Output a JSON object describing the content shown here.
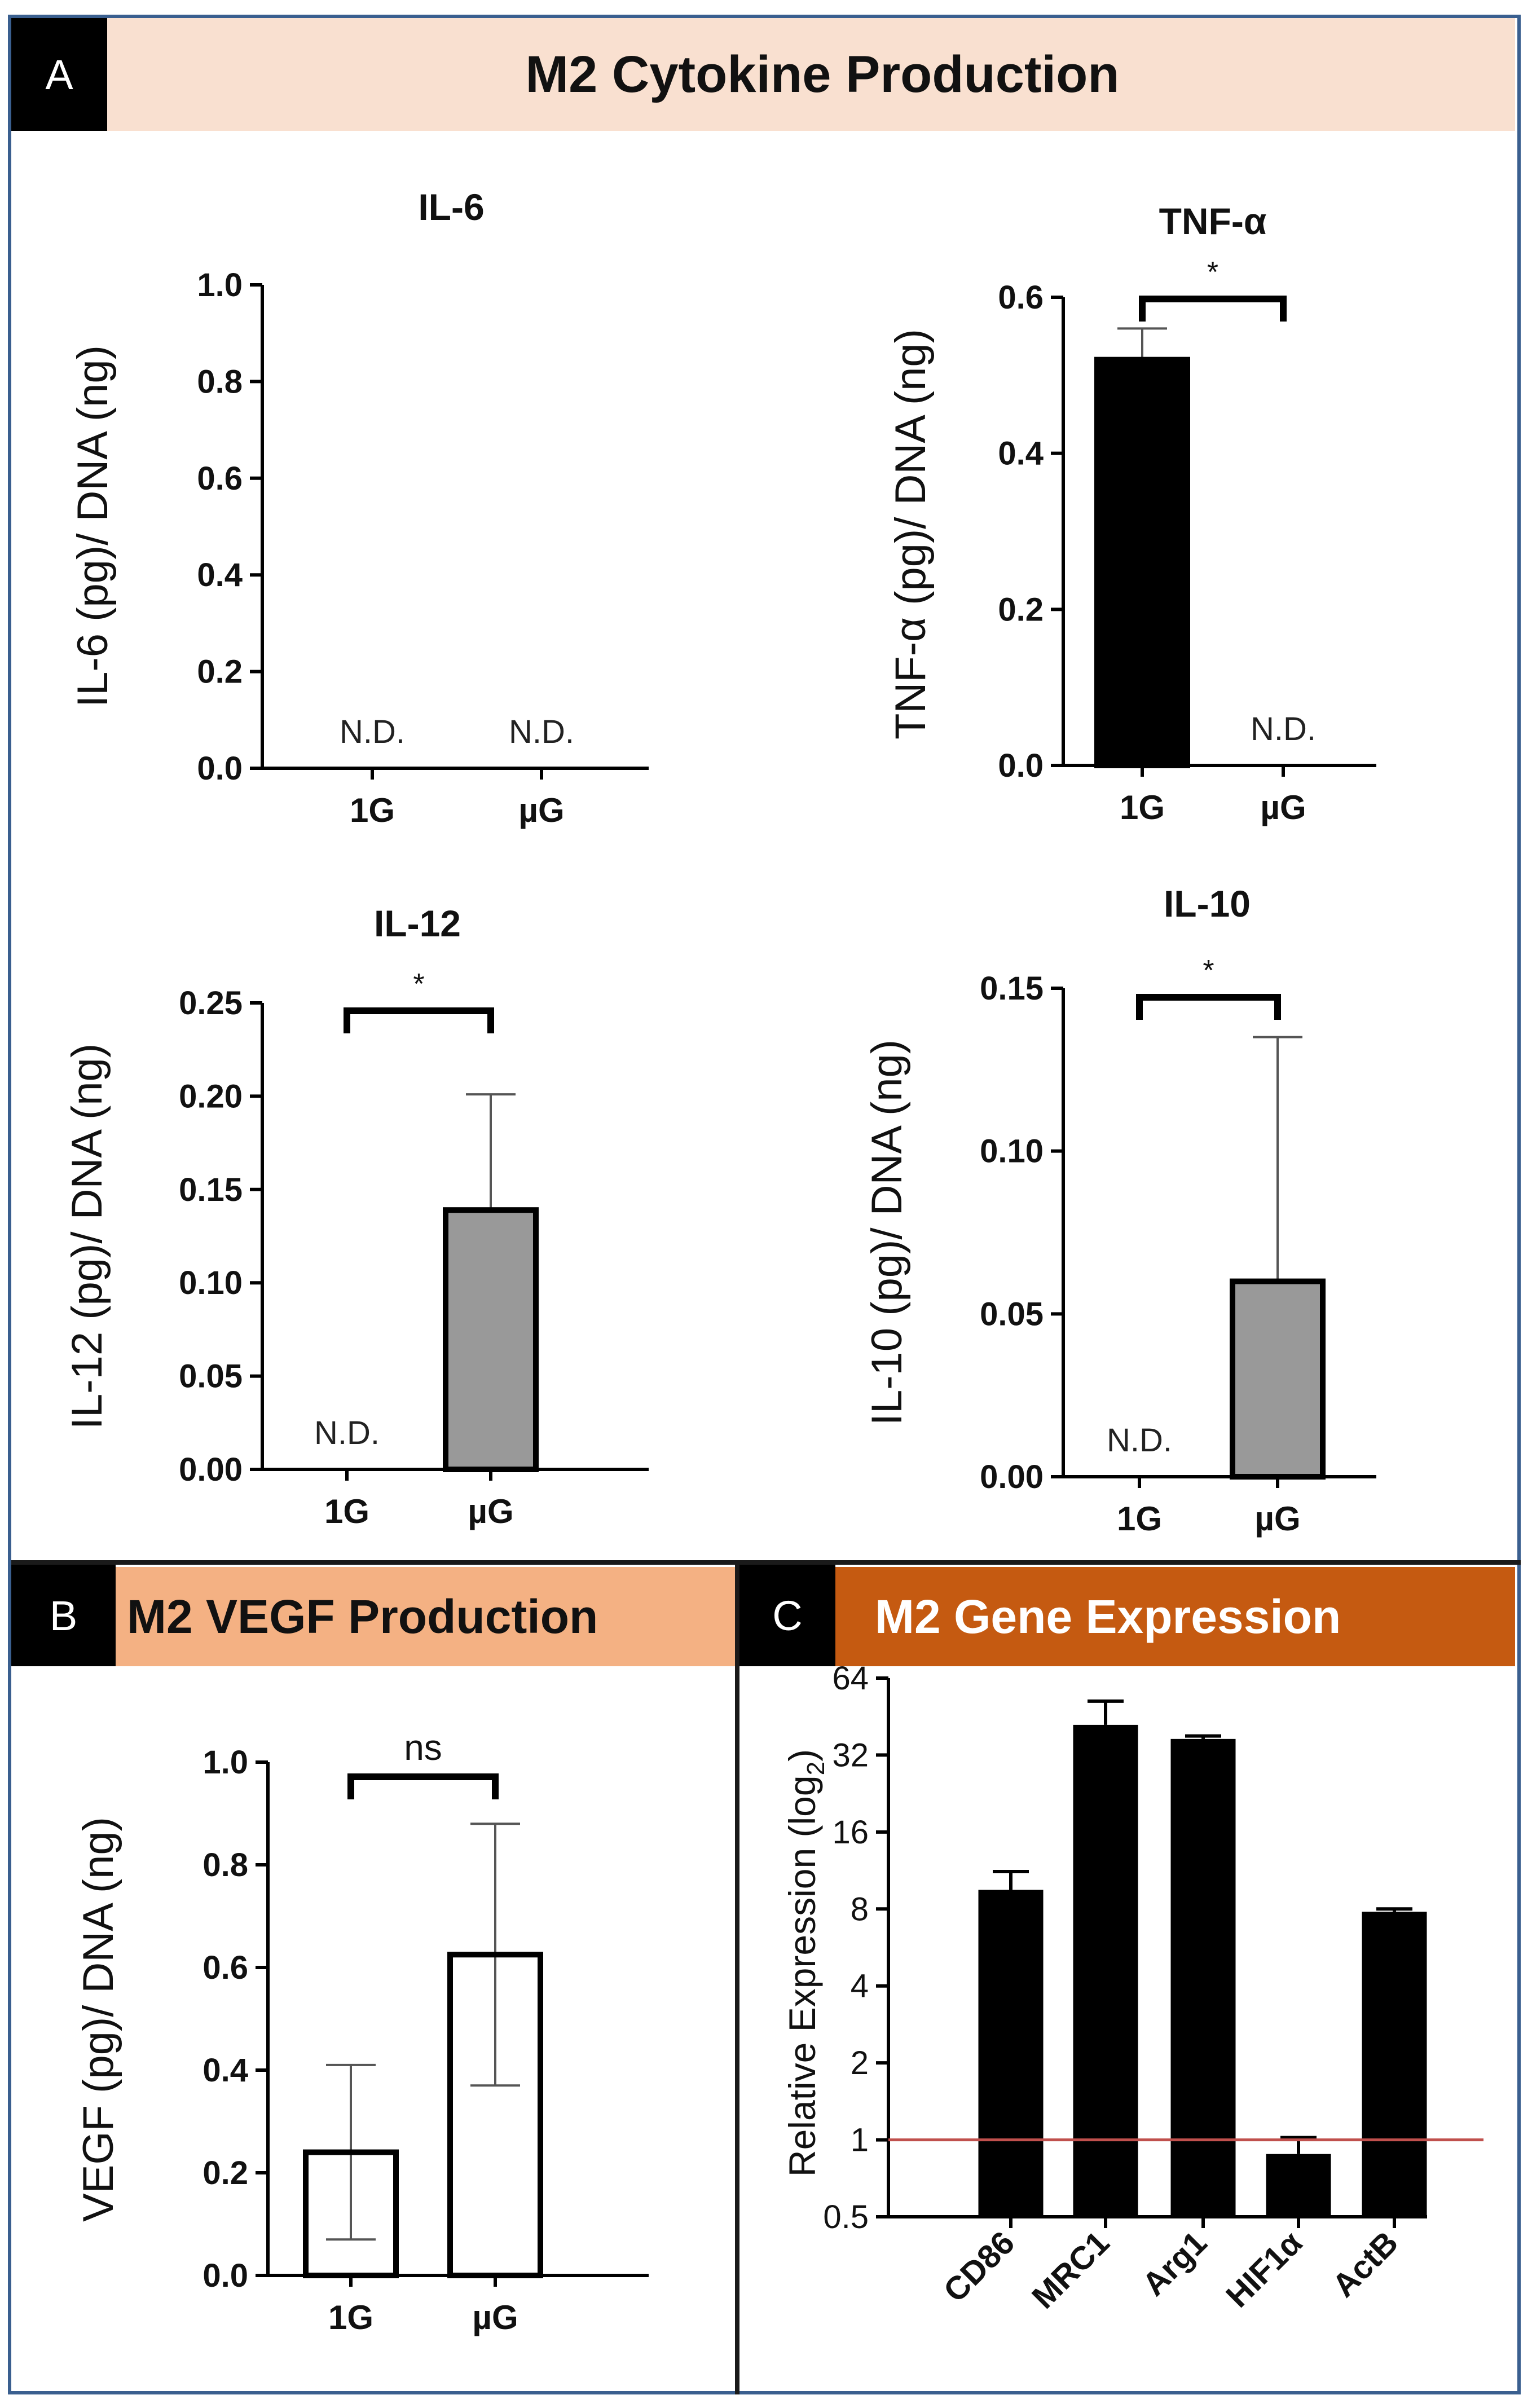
{
  "panels": {
    "a": {
      "letter": "A",
      "title": "M2 Cytokine Production",
      "color": "#f9e0d0"
    },
    "b": {
      "letter": "B",
      "title": "M2 VEGF Production",
      "color": "#f4b183"
    },
    "c": {
      "letter": "C",
      "title": "M2 Gene Expression",
      "color": "#c55a11"
    }
  },
  "chart_data": [
    {
      "id": "il6",
      "type": "bar",
      "title": "IL-6",
      "ylabel": "IL-6 (pg)/ DNA (ng)",
      "categories": [
        "1G",
        "µG"
      ],
      "values": [
        0,
        0
      ],
      "errors": [
        0,
        0
      ],
      "bar_colors": [
        "#000000",
        "#999999"
      ],
      "ylim": [
        0,
        1.0
      ],
      "yticks": [
        "0.0",
        "0.2",
        "0.4",
        "0.6",
        "0.8",
        "1.0"
      ],
      "annotations": [
        "N.D.",
        "N.D."
      ],
      "significance": null
    },
    {
      "id": "tnf",
      "type": "bar",
      "title": "TNF-α",
      "ylabel": "TNF-α (pg)/ DNA (ng)",
      "categories": [
        "1G",
        "µG"
      ],
      "values": [
        0.52,
        0
      ],
      "errors": [
        0.04,
        0
      ],
      "bar_colors": [
        "#000000",
        "#999999"
      ],
      "ylim": [
        0,
        0.6
      ],
      "yticks": [
        "0.0",
        "0.2",
        "0.4",
        "0.6"
      ],
      "annotations": [
        "",
        "N.D."
      ],
      "significance": "*"
    },
    {
      "id": "il12",
      "type": "bar",
      "title": "IL-12",
      "ylabel": "IL-12 (pg)/ DNA (ng)",
      "categories": [
        "1G",
        "µG"
      ],
      "values": [
        0,
        0.139
      ],
      "errors": [
        0,
        0.062
      ],
      "bar_colors": [
        "#000000",
        "#999999"
      ],
      "ylim": [
        0,
        0.25
      ],
      "yticks": [
        "0.00",
        "0.05",
        "0.10",
        "0.15",
        "0.20",
        "0.25"
      ],
      "annotations": [
        "N.D.",
        ""
      ],
      "significance": "*"
    },
    {
      "id": "il10",
      "type": "bar",
      "title": "IL-10",
      "ylabel": "IL-10 (pg)/ DNA (ng)",
      "categories": [
        "1G",
        "µG"
      ],
      "values": [
        0,
        0.06
      ],
      "errors": [
        0,
        0.075
      ],
      "bar_colors": [
        "#000000",
        "#999999"
      ],
      "ylim": [
        0,
        0.15
      ],
      "yticks": [
        "0.00",
        "0.05",
        "0.10",
        "0.15"
      ],
      "annotations": [
        "N.D.",
        ""
      ],
      "significance": "*"
    },
    {
      "id": "vegf",
      "type": "bar",
      "title": "",
      "ylabel": "VEGF (pg)/ DNA (ng)",
      "categories": [
        "1G",
        "µG"
      ],
      "values": [
        0.24,
        0.625
      ],
      "errors": [
        0.17,
        0.255
      ],
      "bar_colors": [
        "#ffffff",
        "#ffffff"
      ],
      "ylim": [
        0,
        1.0
      ],
      "yticks": [
        "0.0",
        "0.2",
        "0.4",
        "0.6",
        "0.8",
        "1.0"
      ],
      "annotations": [
        "",
        ""
      ],
      "significance": "ns"
    },
    {
      "id": "gene",
      "type": "bar",
      "title": "",
      "ylabel": "Relative Expression (log",
      "ylabel_sub": "2",
      "ylabel_end": ")",
      "yscale": "log2",
      "categories": [
        "CD86",
        "MRC1",
        "Arg1",
        "HIF1α",
        "ActB"
      ],
      "values": [
        9.5,
        42,
        37,
        0.88,
        7.8
      ],
      "err_hi": [
        11.2,
        52,
        38,
        1.02,
        8.0
      ],
      "ylim": [
        0.5,
        64
      ],
      "yticks": [
        "0.5",
        "1",
        "2",
        "4",
        "8",
        "16",
        "32",
        "64"
      ],
      "reference_line": 1,
      "reference_color": "#c0504d"
    }
  ]
}
